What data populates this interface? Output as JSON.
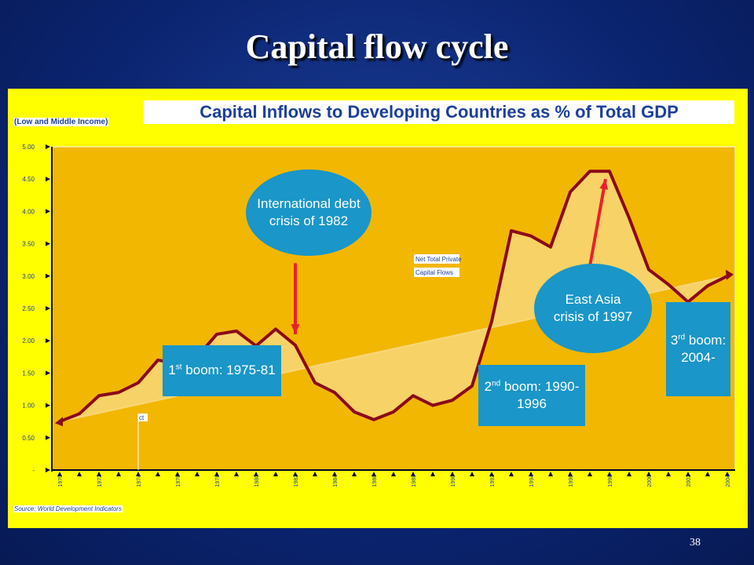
{
  "slide": {
    "title": "Capital flow cycle",
    "page_number": "38"
  },
  "chart_data": {
    "type": "line",
    "title": "Capital Inflows to Developing Countries as % of Total GDP",
    "subtitle": "(Low and Middle Income)",
    "source": "Source: World Development Indicators",
    "x": [
      1970,
      1971,
      1972,
      1973,
      1974,
      1975,
      1976,
      1977,
      1978,
      1979,
      1980,
      1981,
      1982,
      1983,
      1984,
      1985,
      1986,
      1987,
      1988,
      1989,
      1990,
      1991,
      1992,
      1993,
      1994,
      1995,
      1996,
      1997,
      1998,
      1999,
      2000,
      2001,
      2002,
      2003,
      2004
    ],
    "series": [
      {
        "name": "",
        "values": [
          0.75,
          0.87,
          1.15,
          1.2,
          1.35,
          1.7,
          1.65,
          1.75,
          2.1,
          2.15,
          1.92,
          2.18,
          1.93,
          1.35,
          1.2,
          0.9,
          0.78,
          0.9,
          1.15,
          1.0,
          1.08,
          1.3,
          2.3,
          3.7,
          3.62,
          3.45,
          4.3,
          4.62,
          4.62,
          3.9,
          3.1,
          2.87,
          2.6,
          2.85,
          3.0
        ]
      }
    ],
    "legend_labels": [
      "Net Total Private",
      "Capital Flows"
    ],
    "stray_label": "ct",
    "ylim": [
      0,
      5
    ],
    "yticks": [
      "-",
      "0.50",
      "1.00",
      "1.50",
      "2.00",
      "2.50",
      "3.00",
      "3.50",
      "4.00",
      "4.50",
      "5.00"
    ],
    "xticks": [
      "1970",
      "1972",
      "1974",
      "1976",
      "1978",
      "1980",
      "1982",
      "1984",
      "1986",
      "1988",
      "1990",
      "1992",
      "1994",
      "1996",
      "1998",
      "2000",
      "2002",
      "2004"
    ],
    "trend": {
      "from": [
        1970,
        0.75
      ],
      "to": [
        2004,
        3.0
      ]
    },
    "arrows": [
      {
        "from": [
          1982,
          3.2
        ],
        "to": [
          1982,
          2.1
        ]
      },
      {
        "from": [
          1997,
          3.15
        ],
        "to": [
          1997.8,
          4.5
        ]
      }
    ],
    "colors": {
      "line": "#8b0a18",
      "plot_bg": "#f2b700",
      "fill": "#f8d778",
      "axis": "#000033",
      "arrow": "#e8202a",
      "grid_border": "#ffffff"
    }
  },
  "callouts": {
    "debt_crisis": "International debt crisis of 1982",
    "boom1_prefix": "1",
    "boom1_sup": "st",
    "boom1_text": "boom: 1975-81",
    "boom2_prefix": "2",
    "boom2_sup": "nd",
    "boom2_text": "boom: 1990-1996",
    "asia_crisis": "East Asia crisis of 1997",
    "boom3_prefix": "3",
    "boom3_sup": "rd",
    "boom3_text": "boom: 2004-"
  }
}
